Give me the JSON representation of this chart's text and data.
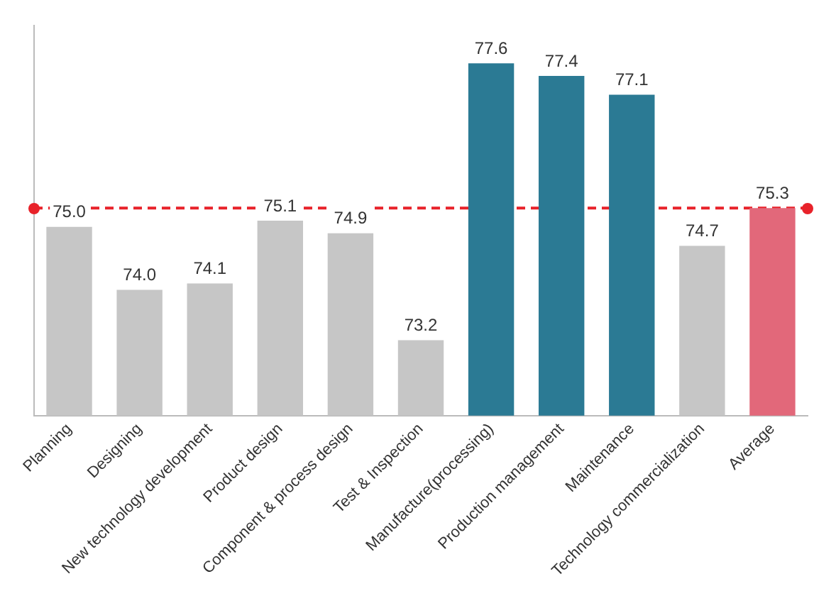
{
  "chart_data": {
    "type": "bar",
    "categories": [
      "Planning",
      "Designing",
      "New technology development",
      "Product design",
      "Component & process design",
      "Test & Inspection",
      "Manufacture(processing)",
      "Production management",
      "Maintenance",
      "Technology commercialization",
      "Average"
    ],
    "values": [
      75.0,
      74.0,
      74.1,
      75.1,
      74.9,
      73.2,
      77.6,
      77.4,
      77.1,
      74.7,
      75.3
    ],
    "colors": [
      "#c6c6c6",
      "#c6c6c6",
      "#c6c6c6",
      "#c6c6c6",
      "#c6c6c6",
      "#c6c6c6",
      "#2b7a94",
      "#2b7a94",
      "#2b7a94",
      "#c6c6c6",
      "#e2687a"
    ],
    "value_labels": [
      "75.0",
      "74.0",
      "74.1",
      "75.1",
      "74.9",
      "73.2",
      "77.6",
      "77.4",
      "77.1",
      "74.7",
      "75.3"
    ],
    "ylim": [
      72,
      78.2
    ],
    "tick_labels": "x",
    "grid": false,
    "legend": false,
    "ref_lines": [
      {
        "axis": "y",
        "value": 75.3,
        "color": "#e8222a",
        "line_style": "dashed"
      }
    ]
  }
}
